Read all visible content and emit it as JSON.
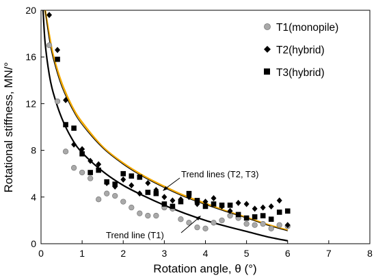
{
  "chart_data": {
    "type": "scatter",
    "title": "",
    "xlabel": "Rotation angle, θ (°)",
    "ylabel": "Rotational stiffness, MN/°",
    "xlim": [
      0,
      8
    ],
    "ylim": [
      0,
      20
    ],
    "x_ticks": [
      0,
      1,
      2,
      3,
      4,
      5,
      6,
      7,
      8
    ],
    "y_ticks": [
      0,
      4,
      8,
      12,
      16,
      20
    ],
    "grid": false,
    "legend_position": "top-right",
    "series": [
      {
        "name": "T1(monopile)",
        "marker": "circle",
        "color": "#a9a9a9",
        "points": [
          [
            0.2,
            17.0
          ],
          [
            0.4,
            12.2
          ],
          [
            0.6,
            7.9
          ],
          [
            0.8,
            6.5
          ],
          [
            1.0,
            6.1
          ],
          [
            1.2,
            5.6
          ],
          [
            1.4,
            3.8
          ],
          [
            1.6,
            4.3
          ],
          [
            1.8,
            4.1
          ],
          [
            2.0,
            3.6
          ],
          [
            2.2,
            3.1
          ],
          [
            2.4,
            2.6
          ],
          [
            2.6,
            2.4
          ],
          [
            2.8,
            2.4
          ],
          [
            3.0,
            3.1
          ],
          [
            3.2,
            3.0
          ],
          [
            3.4,
            2.1
          ],
          [
            3.6,
            1.8
          ],
          [
            3.8,
            1.4
          ],
          [
            4.0,
            1.3
          ],
          [
            4.2,
            1.8
          ],
          [
            4.4,
            2.0
          ],
          [
            4.6,
            2.4
          ],
          [
            4.8,
            2.2
          ],
          [
            5.0,
            1.7
          ],
          [
            5.2,
            1.6
          ],
          [
            5.4,
            1.7
          ],
          [
            5.6,
            1.3
          ],
          [
            5.8,
            1.6
          ],
          [
            6.0,
            1.5
          ]
        ]
      },
      {
        "name": "T2(hybrid)",
        "marker": "diamond",
        "color": "#000000",
        "points": [
          [
            0.2,
            19.6
          ],
          [
            0.4,
            16.6
          ],
          [
            0.6,
            12.3
          ],
          [
            0.8,
            8.5
          ],
          [
            1.0,
            8.1
          ],
          [
            1.2,
            7.1
          ],
          [
            1.4,
            6.8
          ],
          [
            1.6,
            5.2
          ],
          [
            1.8,
            4.9
          ],
          [
            2.0,
            5.5
          ],
          [
            2.2,
            5.0
          ],
          [
            2.4,
            4.3
          ],
          [
            2.6,
            5.2
          ],
          [
            2.8,
            4.6
          ],
          [
            3.0,
            4.0
          ],
          [
            3.2,
            3.7
          ],
          [
            3.4,
            3.8
          ],
          [
            3.6,
            4.0
          ],
          [
            3.8,
            3.4
          ],
          [
            4.0,
            3.6
          ],
          [
            4.2,
            3.9
          ],
          [
            4.4,
            3.2
          ],
          [
            4.6,
            2.8
          ],
          [
            4.8,
            3.5
          ],
          [
            5.0,
            3.4
          ],
          [
            5.2,
            3.0
          ],
          [
            5.4,
            3.1
          ],
          [
            5.6,
            3.2
          ],
          [
            5.8,
            3.7
          ],
          [
            6.0,
            1.6
          ]
        ]
      },
      {
        "name": "T3(hybrid)",
        "marker": "square",
        "color": "#000000",
        "points": [
          [
            0.4,
            15.8
          ],
          [
            0.6,
            10.2
          ],
          [
            0.8,
            9.9
          ],
          [
            1.0,
            7.7
          ],
          [
            1.2,
            6.1
          ],
          [
            1.4,
            6.3
          ],
          [
            1.6,
            5.3
          ],
          [
            1.8,
            5.1
          ],
          [
            2.0,
            6.0
          ],
          [
            2.2,
            5.8
          ],
          [
            2.4,
            5.7
          ],
          [
            2.6,
            4.4
          ],
          [
            2.8,
            4.3
          ],
          [
            3.0,
            3.4
          ],
          [
            3.2,
            3.2
          ],
          [
            3.4,
            3.6
          ],
          [
            3.6,
            4.3
          ],
          [
            3.8,
            3.7
          ],
          [
            4.0,
            3.2
          ],
          [
            4.2,
            3.4
          ],
          [
            4.4,
            3.3
          ],
          [
            4.6,
            3.3
          ],
          [
            4.8,
            2.5
          ],
          [
            5.0,
            2.2
          ],
          [
            5.2,
            2.3
          ],
          [
            5.4,
            2.4
          ],
          [
            5.6,
            2.1
          ],
          [
            5.8,
            2.7
          ],
          [
            6.0,
            2.8
          ]
        ]
      }
    ],
    "trend_lines": [
      {
        "label": "Trend line (T1)",
        "color": "#000000",
        "points": [
          [
            0.05,
            20
          ],
          [
            0.1,
            17.2
          ],
          [
            0.2,
            14.5
          ],
          [
            0.3,
            12.9
          ],
          [
            0.5,
            10.8
          ],
          [
            0.75,
            9.0
          ],
          [
            1.0,
            7.8
          ],
          [
            1.5,
            6.2
          ],
          [
            2.0,
            5.0
          ],
          [
            2.5,
            4.1
          ],
          [
            3.0,
            3.3
          ],
          [
            3.5,
            2.6
          ],
          [
            4.0,
            2.0
          ],
          [
            4.5,
            1.5
          ],
          [
            5.0,
            1.05
          ],
          [
            5.5,
            0.6
          ],
          [
            6.0,
            0.25
          ]
        ]
      },
      {
        "label": "Trend lines (T2, T3)",
        "color": "#f2a900",
        "points": [
          [
            0.1,
            20
          ],
          [
            0.2,
            17.9
          ],
          [
            0.3,
            16.1
          ],
          [
            0.5,
            13.8
          ],
          [
            0.75,
            11.8
          ],
          [
            1.0,
            10.4
          ],
          [
            1.5,
            8.3
          ],
          [
            2.0,
            6.9
          ],
          [
            2.5,
            5.8
          ],
          [
            3.0,
            4.9
          ],
          [
            3.5,
            4.1
          ],
          [
            4.0,
            3.45
          ],
          [
            4.5,
            2.8
          ],
          [
            5.0,
            2.25
          ],
          [
            5.5,
            1.65
          ],
          [
            6.0,
            1.15
          ]
        ]
      },
      {
        "label": "",
        "color": "#000000",
        "points": [
          [
            0.1,
            20
          ],
          [
            0.2,
            17.5
          ],
          [
            0.3,
            15.8
          ],
          [
            0.5,
            13.5
          ],
          [
            0.75,
            11.6
          ],
          [
            1.0,
            10.2
          ],
          [
            1.5,
            8.2
          ],
          [
            2.0,
            6.8
          ],
          [
            2.5,
            5.7
          ],
          [
            3.0,
            4.8
          ],
          [
            3.5,
            4.0
          ],
          [
            4.0,
            3.35
          ],
          [
            4.5,
            2.75
          ],
          [
            5.0,
            2.2
          ],
          [
            5.5,
            1.6
          ],
          [
            6.0,
            1.1
          ]
        ]
      }
    ],
    "annotations": [
      {
        "text": "Trend lines (T2, T3)",
        "arrow_to": [
          3.0,
          4.4
        ]
      },
      {
        "text": "Trend line (T1)",
        "arrow_to": [
          3.4,
          3.0
        ]
      }
    ]
  }
}
